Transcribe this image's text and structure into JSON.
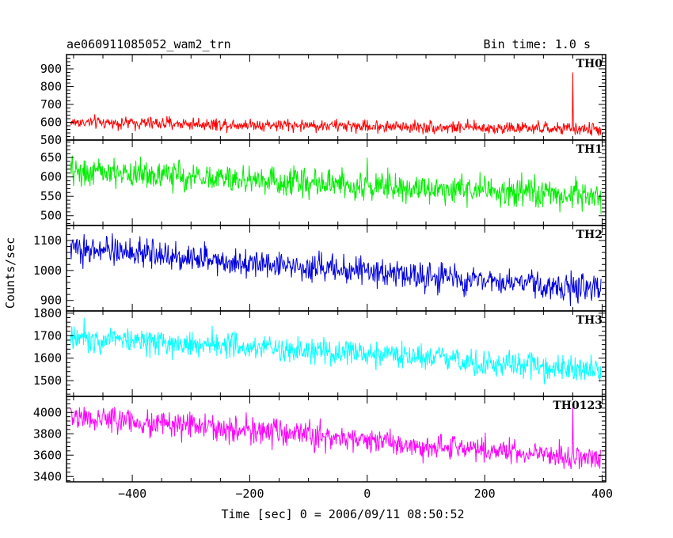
{
  "chart_data": {
    "type": "line",
    "title": "ae060911085052_wam2_trn",
    "bin_time": "Bin time: 1.0 s",
    "xlabel": "Time [sec] 0 = 2006/09/11 08:50:52",
    "ylabel": "Counts/sec",
    "xlim": [
      -512,
      406
    ],
    "x_ticks": [
      -400,
      -200,
      0,
      200,
      400
    ],
    "x_tick_labels": [
      "−400",
      "−200",
      "0",
      "200",
      "400"
    ],
    "grid": false,
    "panels": [
      {
        "name": "TH0",
        "color": "#ff0000",
        "ylim": [
          500,
          980
        ],
        "y_ticks": [
          500,
          600,
          700,
          800,
          900
        ],
        "y_tick_labels": [
          "500",
          "600",
          "700",
          "800",
          "900"
        ],
        "trend_start": 600,
        "trend_end": 560,
        "noise": 25,
        "spikes": [
          {
            "x": 350,
            "y": 980
          },
          {
            "x": 350,
            "y": 880
          }
        ]
      },
      {
        "name": "TH1",
        "color": "#00ee00",
        "ylim": [
          475,
          695
        ],
        "y_ticks": [
          500,
          550,
          600,
          650
        ],
        "y_tick_labels": [
          "500",
          "550",
          "600",
          "650"
        ],
        "trend_start": 615,
        "trend_end": 550,
        "noise": 26,
        "spikes": [
          {
            "x": 0,
            "y": 695
          },
          {
            "x": 0,
            "y": 650
          }
        ]
      },
      {
        "name": "TH2",
        "color": "#0000dd",
        "ylim": [
          865,
          1150
        ],
        "y_ticks": [
          900,
          1000,
          1100
        ],
        "y_tick_labels": [
          "900",
          "1000",
          "1100"
        ],
        "trend_start": 1075,
        "trend_end": 935,
        "noise": 32,
        "spikes": []
      },
      {
        "name": "TH3",
        "color": "#00ffff",
        "ylim": [
          1430,
          1810
        ],
        "y_ticks": [
          1500,
          1600,
          1700,
          1800
        ],
        "y_tick_labels": [
          "1500",
          "1600",
          "1700",
          "1800"
        ],
        "trend_start": 1700,
        "trend_end": 1545,
        "noise": 42,
        "spikes": []
      },
      {
        "name": "TH0123",
        "color": "#ff00ff",
        "ylim": [
          3350,
          4150
        ],
        "y_ticks": [
          3400,
          3600,
          3800,
          4000
        ],
        "y_tick_labels": [
          "3400",
          "3600",
          "3800",
          "4000"
        ],
        "trend_start": 3960,
        "trend_end": 3560,
        "noise": 85,
        "spikes": [
          {
            "x": 350,
            "y": 4050
          }
        ]
      }
    ]
  }
}
